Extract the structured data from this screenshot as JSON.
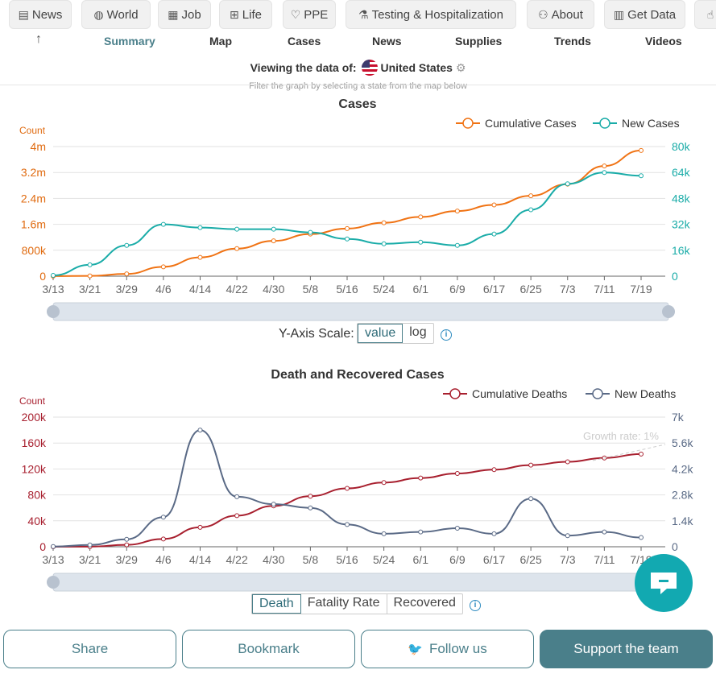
{
  "topnav": [
    {
      "label": "News",
      "icon": "newspaper-icon",
      "glyph": "▤"
    },
    {
      "label": "World",
      "icon": "globe-icon",
      "glyph": "◍"
    },
    {
      "label": "Job",
      "icon": "document-icon",
      "glyph": "▦"
    },
    {
      "label": "Life",
      "icon": "cart-icon",
      "glyph": "⊞"
    },
    {
      "label": "PPE",
      "icon": "heart-icon",
      "glyph": "♡"
    },
    {
      "label": "Testing & Hospitalization",
      "icon": "flask-icon",
      "glyph": "⚗"
    },
    {
      "label": "About",
      "icon": "people-icon",
      "glyph": "⚇"
    },
    {
      "label": "Get Data",
      "icon": "spreadsheet-icon",
      "glyph": "▥"
    },
    {
      "label": "",
      "icon": "thumbs-up-icon",
      "glyph": "☝"
    }
  ],
  "subnav": {
    "back_icon": "↑",
    "tabs": [
      "Summary",
      "Map",
      "Cases",
      "News",
      "Supplies",
      "Trends",
      "Videos"
    ],
    "active": "Summary"
  },
  "viewing": {
    "prefix": "Viewing the data of:",
    "region": "United States",
    "hint": "Filter the graph by selecting a state from the map below"
  },
  "colors": {
    "orange": "#f07314",
    "teal": "#1aaca8",
    "red": "#a8202f",
    "slate": "#5a6a86",
    "accent": "#4a7f8a"
  },
  "chart_data": [
    {
      "type": "line",
      "title": "Cases",
      "ylabel_left": "Count",
      "y_left_ticks": [
        "0",
        "800k",
        "1.6m",
        "2.4m",
        "3.2m",
        "4m"
      ],
      "y_left_range": [
        0,
        4000000
      ],
      "y_right_ticks": [
        "0",
        "16k",
        "32k",
        "48k",
        "64k",
        "80k"
      ],
      "y_right_range": [
        0,
        80000
      ],
      "x_ticks": [
        "3/13",
        "3/21",
        "3/29",
        "4/6",
        "4/14",
        "4/22",
        "4/30",
        "5/8",
        "5/16",
        "5/24",
        "6/1",
        "6/9",
        "6/17",
        "6/25",
        "7/3",
        "7/11",
        "7/19"
      ],
      "series": [
        {
          "name": "Cumulative Cases",
          "axis": "left",
          "color": "#f07314",
          "values": [
            2000,
            10000,
            70000,
            290000,
            580000,
            850000,
            1090000,
            1300000,
            1470000,
            1650000,
            1830000,
            2010000,
            2200000,
            2480000,
            2840000,
            3400000,
            3880000
          ]
        },
        {
          "name": "New Cases",
          "axis": "right",
          "color": "#1aaca8",
          "values": [
            500,
            7000,
            19000,
            32000,
            30000,
            29000,
            29000,
            27000,
            23000,
            20000,
            21000,
            19000,
            26000,
            41000,
            57000,
            64000,
            62000
          ]
        }
      ],
      "yaxis_scale": {
        "label": "Y-Axis Scale:",
        "options": [
          "value",
          "log"
        ],
        "selected": "value"
      }
    },
    {
      "type": "line",
      "title": "Death and Recovered Cases",
      "ylabel_left": "Count",
      "y_left_ticks": [
        "0",
        "40k",
        "80k",
        "120k",
        "160k",
        "200k"
      ],
      "y_left_range": [
        0,
        200000
      ],
      "y_right_ticks": [
        "0",
        "1.4k",
        "2.8k",
        "4.2k",
        "5.6k",
        "7k"
      ],
      "y_right_range": [
        0,
        7000
      ],
      "x_ticks": [
        "3/13",
        "3/21",
        "3/29",
        "4/6",
        "4/14",
        "4/22",
        "4/30",
        "5/8",
        "5/16",
        "5/24",
        "6/1",
        "6/9",
        "6/17",
        "6/25",
        "7/3",
        "7/11",
        "7/19"
      ],
      "annotation": "Growth rate: 1%",
      "series": [
        {
          "name": "Cumulative Deaths",
          "axis": "left",
          "color": "#a8202f",
          "values": [
            50,
            200,
            3000,
            12000,
            30000,
            48000,
            63000,
            78000,
            90000,
            99000,
            106000,
            113000,
            119000,
            126000,
            131000,
            137000,
            143000
          ]
        },
        {
          "name": "New Deaths",
          "axis": "right",
          "color": "#5a6a86",
          "values": [
            10,
            100,
            400,
            1600,
            6300,
            2700,
            2300,
            2100,
            1200,
            700,
            800,
            1000,
            700,
            2600,
            600,
            800,
            500
          ]
        }
      ],
      "modes": {
        "options": [
          "Death",
          "Fatality Rate",
          "Recovered"
        ],
        "selected": "Death"
      }
    }
  ],
  "bottom": {
    "share": "Share",
    "bookmark": "Bookmark",
    "follow": "Follow us",
    "support": "Support the team"
  }
}
